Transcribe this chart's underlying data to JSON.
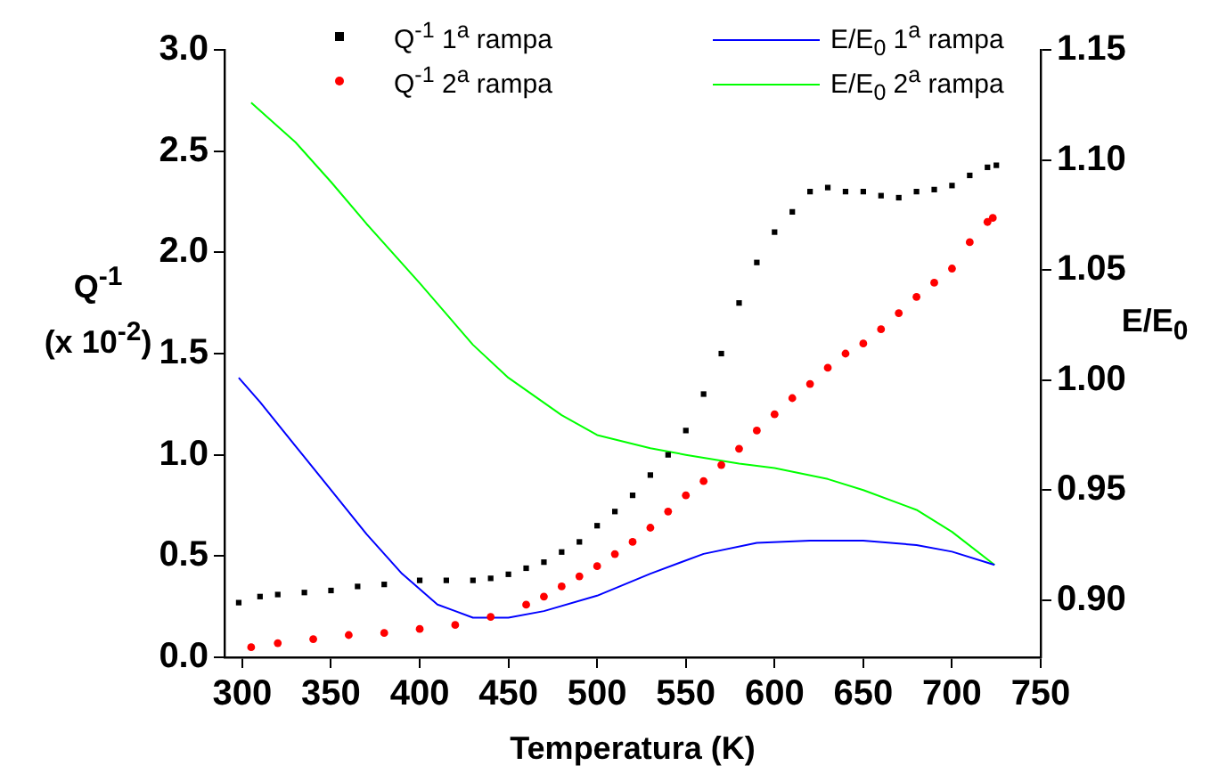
{
  "chart_data": {
    "type": "scatter",
    "xlabel": "Temperatura (K)",
    "ylabel": "Q$^{-1}$ (x 10$^{-2}$)",
    "y2label": "E/E$_{0}$",
    "xlim": [
      290,
      750
    ],
    "xticks": [
      300,
      350,
      400,
      450,
      500,
      550,
      600,
      650,
      700,
      750
    ],
    "ylim": [
      0,
      3
    ],
    "yticks": [
      {
        "value": 0,
        "label": "0.0"
      },
      {
        "value": 0.5,
        "label": "0.5"
      },
      {
        "value": 1,
        "label": "1.0"
      },
      {
        "value": 1.5,
        "label": "1.5"
      },
      {
        "value": 2,
        "label": "2.0"
      },
      {
        "value": 2.5,
        "label": "2.5"
      },
      {
        "value": 3,
        "label": "3.0"
      }
    ],
    "y2lim": [
      0.874,
      1.15
    ],
    "y2ticks": [
      {
        "value": 0.9,
        "label": "0.90"
      },
      {
        "value": 0.95,
        "label": "0.95"
      },
      {
        "value": 1,
        "label": "1.00"
      },
      {
        "value": 1.05,
        "label": "1.05"
      },
      {
        "value": 1.1,
        "label": "1.10"
      },
      {
        "value": 1.15,
        "label": "1.15"
      }
    ],
    "legend": "top",
    "grid": false,
    "series": [
      {
        "name": "Q$^{-1}$ 1$^{a}$ rampa",
        "type": "scatter",
        "marker": "square",
        "color": "#000000",
        "x": [
          298,
          310,
          320,
          335,
          350,
          365,
          380,
          400,
          415,
          430,
          440,
          450,
          460,
          470,
          480,
          490,
          500,
          510,
          520,
          530,
          540,
          550,
          560,
          570,
          580,
          590,
          600,
          610,
          620,
          630,
          640,
          650,
          660,
          670,
          680,
          690,
          700,
          710,
          720,
          725
        ],
        "values": [
          0.27,
          0.3,
          0.31,
          0.32,
          0.33,
          0.35,
          0.36,
          0.38,
          0.38,
          0.38,
          0.39,
          0.41,
          0.44,
          0.47,
          0.52,
          0.57,
          0.65,
          0.72,
          0.8,
          0.9,
          1.0,
          1.12,
          1.3,
          1.5,
          1.75,
          1.95,
          2.1,
          2.2,
          2.3,
          2.32,
          2.3,
          2.3,
          2.28,
          2.27,
          2.3,
          2.31,
          2.33,
          2.38,
          2.42,
          2.43
        ]
      },
      {
        "name": "Q$^{-1}$ 2$^{a}$ rampa",
        "type": "scatter",
        "marker": "circle",
        "color": "#ff0000",
        "x": [
          305,
          320,
          340,
          360,
          380,
          400,
          420,
          440,
          460,
          470,
          480,
          490,
          500,
          510,
          520,
          530,
          540,
          550,
          560,
          570,
          580,
          590,
          600,
          610,
          620,
          630,
          640,
          650,
          660,
          670,
          680,
          690,
          700,
          710,
          720,
          723
        ],
        "values": [
          0.05,
          0.07,
          0.09,
          0.11,
          0.12,
          0.14,
          0.16,
          0.2,
          0.26,
          0.3,
          0.35,
          0.4,
          0.45,
          0.51,
          0.57,
          0.64,
          0.72,
          0.8,
          0.87,
          0.95,
          1.03,
          1.12,
          1.2,
          1.28,
          1.35,
          1.43,
          1.5,
          1.55,
          1.62,
          1.7,
          1.78,
          1.85,
          1.92,
          2.05,
          2.15,
          2.17
        ]
      },
      {
        "name": "E/E$_{0}$ 1$^{a}$ rampa",
        "type": "line",
        "marker": "none",
        "axis": "y2",
        "color": "#0000ff",
        "x": [
          298,
          310,
          330,
          350,
          370,
          390,
          410,
          430,
          450,
          470,
          500,
          530,
          560,
          590,
          620,
          650,
          680,
          700,
          724
        ],
        "values": [
          1.001,
          0.99,
          0.97,
          0.95,
          0.93,
          0.912,
          0.898,
          0.892,
          0.892,
          0.895,
          0.902,
          0.912,
          0.921,
          0.926,
          0.927,
          0.927,
          0.925,
          0.922,
          0.916
        ]
      },
      {
        "name": "E/E$_{0}$ 2$^{a}$ rampa",
        "type": "line",
        "marker": "none",
        "axis": "y2",
        "color": "#00ff00",
        "x": [
          305,
          330,
          350,
          370,
          400,
          430,
          450,
          480,
          500,
          530,
          550,
          580,
          600,
          630,
          650,
          680,
          700,
          724
        ],
        "values": [
          1.126,
          1.108,
          1.09,
          1.071,
          1.044,
          1.016,
          1.001,
          0.984,
          0.975,
          0.969,
          0.966,
          0.962,
          0.96,
          0.955,
          0.95,
          0.941,
          0.931,
          0.916
        ]
      }
    ]
  }
}
